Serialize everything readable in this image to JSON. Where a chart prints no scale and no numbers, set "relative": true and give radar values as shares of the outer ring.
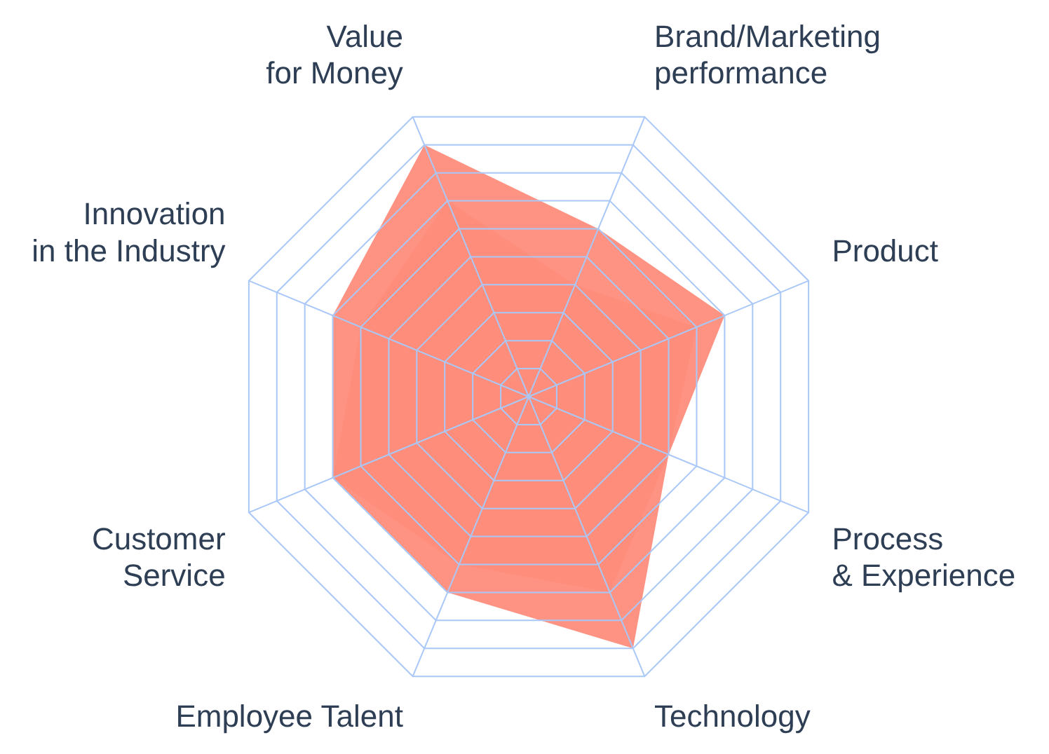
{
  "chart_data": {
    "type": "radar",
    "relative": true,
    "categories": [
      "Brand/Marketing\nperformance",
      "Product",
      "Process\n& Experience",
      "Technology",
      "Employee Talent",
      "Customer\nService",
      "Innovation\nin the Industry",
      "Value\nfor Money"
    ],
    "series": [
      {
        "color": "#ff8a78",
        "values": [
          0.6,
          0.7,
          0.5,
          0.9,
          0.7,
          0.7,
          0.7,
          0.9
        ]
      },
      {
        "color": "#e07563",
        "values": [
          0.4,
          0.6,
          0.5,
          0.7,
          0.6,
          0.7,
          0.6,
          0.7
        ]
      }
    ],
    "grid": true,
    "legend": false
  }
}
